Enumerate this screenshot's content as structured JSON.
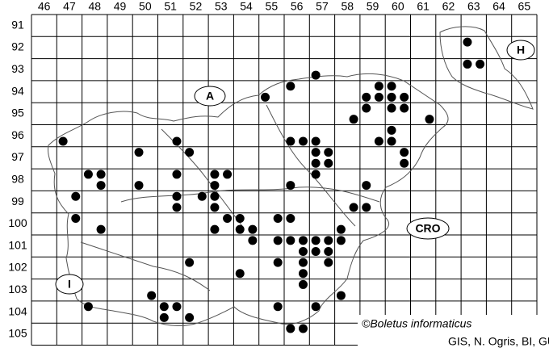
{
  "map": {
    "columns": [
      46,
      47,
      48,
      49,
      50,
      51,
      52,
      53,
      54,
      55,
      56,
      57,
      58,
      59,
      60,
      61,
      62,
      63,
      64,
      65
    ],
    "rows": [
      91,
      92,
      93,
      94,
      95,
      96,
      97,
      98,
      99,
      100,
      101,
      102,
      103,
      104,
      105
    ],
    "regions": [
      "A",
      "H",
      "I",
      "CRO"
    ],
    "copyright": "©Boletus informaticus",
    "credits": "GIS, N. Ogris, BI, GURS",
    "records": [
      [
        63.25,
        92.25
      ],
      [
        63.25,
        93.25
      ],
      [
        63.75,
        93.25
      ],
      [
        57.25,
        93.75
      ],
      [
        56.25,
        94.25
      ],
      [
        55.25,
        94.75
      ],
      [
        59.75,
        94.25
      ],
      [
        60.25,
        94.25
      ],
      [
        59.25,
        94.75
      ],
      [
        59.75,
        94.75
      ],
      [
        60.25,
        94.75
      ],
      [
        60.75,
        94.75
      ],
      [
        59.25,
        95.25
      ],
      [
        60.25,
        95.25
      ],
      [
        60.75,
        95.25
      ],
      [
        58.75,
        95.75
      ],
      [
        61.75,
        95.75
      ],
      [
        60.25,
        96.25
      ],
      [
        59.75,
        96.75
      ],
      [
        60.25,
        96.75
      ],
      [
        47.25,
        96.75
      ],
      [
        51.75,
        96.75
      ],
      [
        52.25,
        97.25
      ],
      [
        50.25,
        97.25
      ],
      [
        56.25,
        96.75
      ],
      [
        56.75,
        96.75
      ],
      [
        57.25,
        96.75
      ],
      [
        57.25,
        97.25
      ],
      [
        57.75,
        97.25
      ],
      [
        57.25,
        97.75
      ],
      [
        57.75,
        97.75
      ],
      [
        60.75,
        97.25
      ],
      [
        60.75,
        97.75
      ],
      [
        48.25,
        98.25
      ],
      [
        48.75,
        98.25
      ],
      [
        48.75,
        98.75
      ],
      [
        50.25,
        98.75
      ],
      [
        51.75,
        98.25
      ],
      [
        53.25,
        98.25
      ],
      [
        53.75,
        98.25
      ],
      [
        53.25,
        98.75
      ],
      [
        57.25,
        98.25
      ],
      [
        56.25,
        98.75
      ],
      [
        59.25,
        98.75
      ],
      [
        47.75,
        99.25
      ],
      [
        51.75,
        99.25
      ],
      [
        51.75,
        99.75
      ],
      [
        52.75,
        99.25
      ],
      [
        53.25,
        99.25
      ],
      [
        53.25,
        99.75
      ],
      [
        53.75,
        100.25
      ],
      [
        54.25,
        100.25
      ],
      [
        54.75,
        100.75
      ],
      [
        54.25,
        100.75
      ],
      [
        53.25,
        100.75
      ],
      [
        54.75,
        101.25
      ],
      [
        58.75,
        99.75
      ],
      [
        59.25,
        99.75
      ],
      [
        47.75,
        100.25
      ],
      [
        48.75,
        100.75
      ],
      [
        55.75,
        100.25
      ],
      [
        56.25,
        100.25
      ],
      [
        58.25,
        100.75
      ],
      [
        58.25,
        101.25
      ],
      [
        55.75,
        101.25
      ],
      [
        56.25,
        101.25
      ],
      [
        56.75,
        101.25
      ],
      [
        57.25,
        101.25
      ],
      [
        57.75,
        101.25
      ],
      [
        56.75,
        101.75
      ],
      [
        57.25,
        101.75
      ],
      [
        57.75,
        101.75
      ],
      [
        55.75,
        102.25
      ],
      [
        56.75,
        102.25
      ],
      [
        57.75,
        102.25
      ],
      [
        52.25,
        102.25
      ],
      [
        56.75,
        102.75
      ],
      [
        54.25,
        102.75
      ],
      [
        56.75,
        103.25
      ],
      [
        58.25,
        103.75
      ],
      [
        50.75,
        103.75
      ],
      [
        48.25,
        104.25
      ],
      [
        51.25,
        104.25
      ],
      [
        51.75,
        104.25
      ],
      [
        55.75,
        104.25
      ],
      [
        57.25,
        104.25
      ],
      [
        51.25,
        104.75
      ],
      [
        52.25,
        104.75
      ],
      [
        56.25,
        105.25
      ],
      [
        56.75,
        105.25
      ]
    ]
  }
}
